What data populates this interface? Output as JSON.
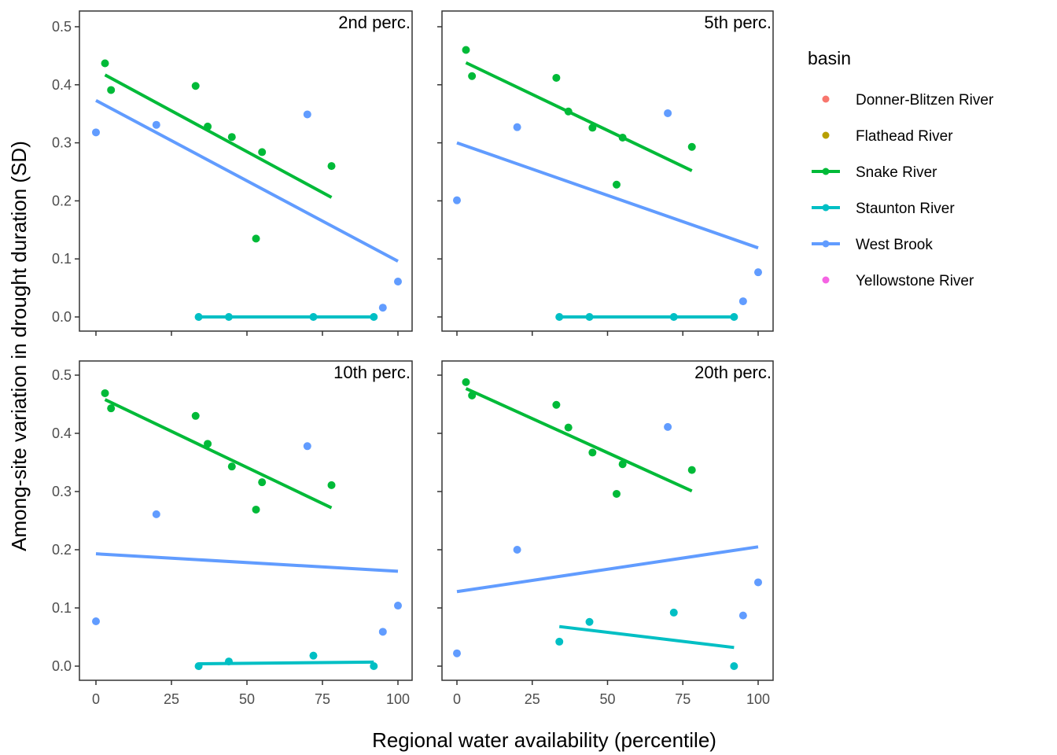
{
  "chart_data": {
    "type": "scatter",
    "subtype": "faceted scatter with linear fits",
    "xlabel": "Regional water availability (percentile)",
    "ylabel": "Among-site variation in drought duration (SD)",
    "xlim": [
      0,
      100
    ],
    "ylim": [
      0,
      0.5
    ],
    "x_ticks": [
      0,
      25,
      50,
      75,
      100
    ],
    "x_tick_labels": [
      "0",
      "25",
      "50",
      "75",
      "100"
    ],
    "y_ticks": [
      0.0,
      0.1,
      0.2,
      0.3,
      0.4,
      0.5
    ],
    "y_tick_labels": [
      "0.0",
      "0.1",
      "0.2",
      "0.3",
      "0.4",
      "0.5"
    ],
    "grid": false,
    "legend": {
      "title": "basin",
      "placement": "right",
      "entries": [
        {
          "name": "Donner-Blitzen River",
          "color": "#F8766D",
          "has_line": false
        },
        {
          "name": "Flathead River",
          "color": "#B79F00",
          "has_line": false
        },
        {
          "name": "Snake River",
          "color": "#00BA38",
          "has_line": true
        },
        {
          "name": "Staunton River",
          "color": "#00BFC4",
          "has_line": true
        },
        {
          "name": "West Brook",
          "color": "#619CFF",
          "has_line": true
        },
        {
          "name": "Yellowstone River",
          "color": "#F564E3",
          "has_line": false
        }
      ]
    },
    "panels": [
      {
        "title": "2nd perc.",
        "series": [
          {
            "name": "Snake River",
            "color": "#00BA38",
            "points": [
              [
                3,
                0.437
              ],
              [
                5,
                0.391
              ],
              [
                33,
                0.398
              ],
              [
                37,
                0.328
              ],
              [
                45,
                0.31
              ],
              [
                53,
                0.135
              ],
              [
                55,
                0.284
              ],
              [
                78,
                0.26
              ]
            ],
            "fit": [
              [
                3,
                0.417
              ],
              [
                78,
                0.206
              ]
            ]
          },
          {
            "name": "West Brook",
            "color": "#619CFF",
            "points": [
              [
                0,
                0.318
              ],
              [
                20,
                0.331
              ],
              [
                70,
                0.349
              ],
              [
                95,
                0.016
              ],
              [
                100,
                0.061
              ]
            ],
            "fit": [
              [
                0,
                0.373
              ],
              [
                100,
                0.096
              ]
            ]
          },
          {
            "name": "Staunton River",
            "color": "#00BFC4",
            "points": [
              [
                34,
                0.0
              ],
              [
                44,
                0.0
              ],
              [
                72,
                0.0
              ],
              [
                92,
                0.0
              ]
            ],
            "fit": [
              [
                34,
                0.0
              ],
              [
                92,
                0.0
              ]
            ]
          }
        ]
      },
      {
        "title": "5th perc.",
        "series": [
          {
            "name": "Snake River",
            "color": "#00BA38",
            "points": [
              [
                3,
                0.46
              ],
              [
                5,
                0.415
              ],
              [
                33,
                0.412
              ],
              [
                37,
                0.354
              ],
              [
                45,
                0.326
              ],
              [
                53,
                0.228
              ],
              [
                55,
                0.309
              ],
              [
                78,
                0.293
              ]
            ],
            "fit": [
              [
                3,
                0.438
              ],
              [
                78,
                0.252
              ]
            ]
          },
          {
            "name": "West Brook",
            "color": "#619CFF",
            "points": [
              [
                0,
                0.201
              ],
              [
                20,
                0.327
              ],
              [
                70,
                0.351
              ],
              [
                95,
                0.027
              ],
              [
                100,
                0.077
              ]
            ],
            "fit": [
              [
                0,
                0.3
              ],
              [
                100,
                0.119
              ]
            ]
          },
          {
            "name": "Staunton River",
            "color": "#00BFC4",
            "points": [
              [
                34,
                0.0
              ],
              [
                44,
                0.0
              ],
              [
                72,
                0.0
              ],
              [
                92,
                0.0
              ]
            ],
            "fit": [
              [
                34,
                0.0
              ],
              [
                92,
                0.0
              ]
            ]
          }
        ]
      },
      {
        "title": "10th perc.",
        "series": [
          {
            "name": "Snake River",
            "color": "#00BA38",
            "points": [
              [
                3,
                0.469
              ],
              [
                5,
                0.443
              ],
              [
                33,
                0.43
              ],
              [
                37,
                0.382
              ],
              [
                45,
                0.343
              ],
              [
                53,
                0.269
              ],
              [
                55,
                0.316
              ],
              [
                78,
                0.311
              ]
            ],
            "fit": [
              [
                3,
                0.458
              ],
              [
                78,
                0.272
              ]
            ]
          },
          {
            "name": "West Brook",
            "color": "#619CFF",
            "points": [
              [
                0,
                0.077
              ],
              [
                20,
                0.261
              ],
              [
                70,
                0.378
              ],
              [
                95,
                0.059
              ],
              [
                100,
                0.104
              ]
            ],
            "fit": [
              [
                0,
                0.193
              ],
              [
                100,
                0.163
              ]
            ]
          },
          {
            "name": "Staunton River",
            "color": "#00BFC4",
            "points": [
              [
                34,
                0.0
              ],
              [
                44,
                0.008
              ],
              [
                72,
                0.018
              ],
              [
                92,
                0.0
              ]
            ],
            "fit": [
              [
                34,
                0.004
              ],
              [
                92,
                0.007
              ]
            ]
          }
        ]
      },
      {
        "title": "20th perc.",
        "series": [
          {
            "name": "Snake River",
            "color": "#00BA38",
            "points": [
              [
                3,
                0.488
              ],
              [
                5,
                0.465
              ],
              [
                33,
                0.449
              ],
              [
                37,
                0.41
              ],
              [
                45,
                0.367
              ],
              [
                53,
                0.296
              ],
              [
                55,
                0.347
              ],
              [
                78,
                0.337
              ]
            ],
            "fit": [
              [
                3,
                0.477
              ],
              [
                78,
                0.301
              ]
            ]
          },
          {
            "name": "West Brook",
            "color": "#619CFF",
            "points": [
              [
                0,
                0.022
              ],
              [
                20,
                0.2
              ],
              [
                70,
                0.411
              ],
              [
                95,
                0.087
              ],
              [
                100,
                0.144
              ]
            ],
            "fit": [
              [
                0,
                0.128
              ],
              [
                100,
                0.205
              ]
            ]
          },
          {
            "name": "Staunton River",
            "color": "#00BFC4",
            "points": [
              [
                34,
                0.042
              ],
              [
                44,
                0.076
              ],
              [
                72,
                0.092
              ],
              [
                92,
                0.0
              ]
            ],
            "fit": [
              [
                34,
                0.068
              ],
              [
                92,
                0.032
              ]
            ]
          }
        ]
      }
    ]
  }
}
